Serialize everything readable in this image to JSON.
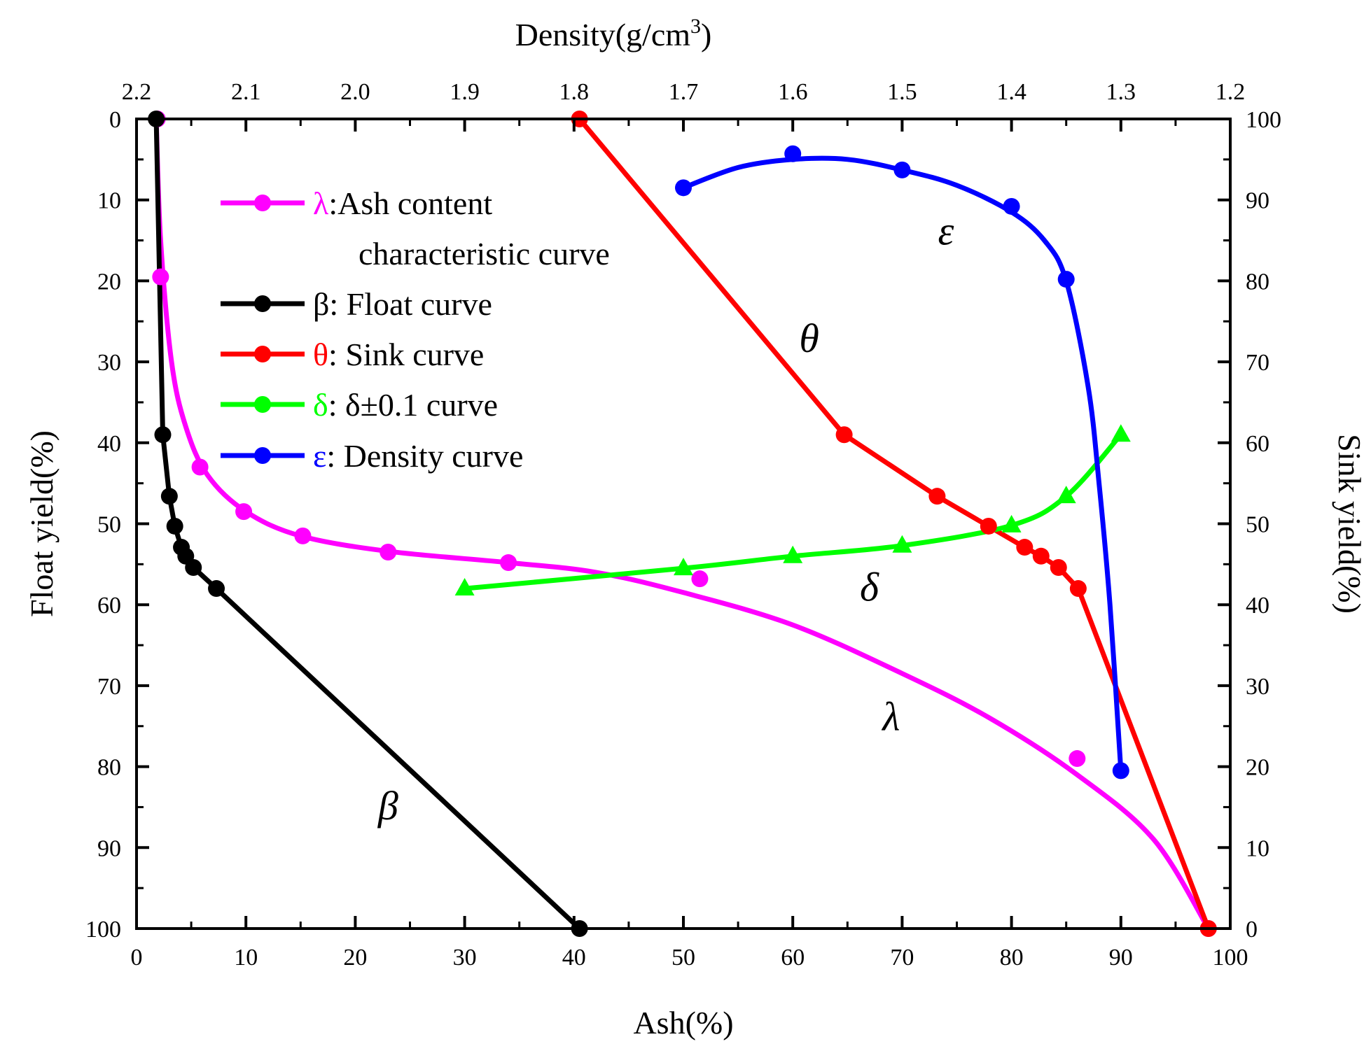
{
  "chart_data": {
    "type": "line",
    "bottom_axis": {
      "label": "Ash(%)",
      "range": [
        0,
        100
      ],
      "ticks": [
        "0",
        "10",
        "20",
        "30",
        "40",
        "50",
        "60",
        "70",
        "80",
        "90",
        "100"
      ]
    },
    "left_axis": {
      "label": "Float yield(%)",
      "range": [
        0,
        100
      ],
      "reversed": true,
      "ticks": [
        "0",
        "10",
        "20",
        "30",
        "40",
        "50",
        "60",
        "70",
        "80",
        "90",
        "100"
      ]
    },
    "right_axis": {
      "label": "Sink yield(%)",
      "range": [
        0,
        100
      ],
      "ticks": [
        "100",
        "90",
        "80",
        "70",
        "60",
        "50",
        "40",
        "30",
        "20",
        "10",
        "0"
      ]
    },
    "top_axis": {
      "label": "Density(g/cm",
      "label_sup": "3",
      "label_end": ")",
      "range": [
        2.2,
        1.2
      ],
      "ticks": [
        "2.2",
        "2.1",
        "2.0",
        "1.9",
        "1.8",
        "1.7",
        "1.6",
        "1.5",
        "1.4",
        "1.3",
        "1.2"
      ]
    },
    "series": [
      {
        "id": "lambda",
        "symbol": "λ",
        "legend_suffix": ":Ash content",
        "legend_line2": "characteristic curve",
        "color": "#ff00ff",
        "marker": "circle",
        "curve_label": "λ",
        "points": [
          [
            1.9,
            0
          ],
          [
            2.2,
            19.5
          ],
          [
            5.8,
            43
          ],
          [
            9.8,
            48.5
          ],
          [
            15.2,
            51.5
          ],
          [
            23,
            53.5
          ],
          [
            34,
            54.8
          ],
          [
            51.5,
            56.8
          ],
          [
            86,
            79
          ],
          [
            98,
            100
          ]
        ],
        "fit": [
          [
            1.8,
            0
          ],
          [
            2.2,
            15
          ],
          [
            3.2,
            30
          ],
          [
            4.5,
            38
          ],
          [
            6.5,
            44
          ],
          [
            10,
            48.5
          ],
          [
            15,
            51.5
          ],
          [
            23,
            53.4
          ],
          [
            34,
            54.8
          ],
          [
            42,
            56
          ],
          [
            50,
            58.5
          ],
          [
            60,
            62.5
          ],
          [
            70,
            68.5
          ],
          [
            78,
            74
          ],
          [
            86,
            81
          ],
          [
            93,
            89
          ],
          [
            98,
            100
          ]
        ]
      },
      {
        "id": "beta",
        "symbol": "β",
        "legend_suffix": ": Float curve",
        "color": "#000000",
        "marker": "circle",
        "curve_label": "β",
        "points": [
          [
            1.8,
            0
          ],
          [
            2.4,
            39
          ],
          [
            3,
            46.6
          ],
          [
            3.5,
            50.3
          ],
          [
            4.1,
            52.9
          ],
          [
            4.5,
            54
          ],
          [
            5.2,
            55.4
          ],
          [
            7.3,
            58
          ],
          [
            40.5,
            100
          ]
        ]
      },
      {
        "id": "theta",
        "symbol": "θ",
        "legend_suffix": ": Sink curve",
        "color": "#ff0000",
        "marker": "circle",
        "curve_label": "θ",
        "points": [
          [
            40.5,
            0
          ],
          [
            64.7,
            39
          ],
          [
            73.2,
            46.6
          ],
          [
            77.9,
            50.3
          ],
          [
            81.2,
            52.9
          ],
          [
            82.7,
            54
          ],
          [
            84.3,
            55.4
          ],
          [
            86.1,
            58
          ],
          [
            98,
            100
          ]
        ]
      },
      {
        "id": "delta",
        "symbol": "δ",
        "legend_suffix": ": δ±0.1 curve",
        "color": "#00ff00",
        "marker": "triangle",
        "curve_label": "δ",
        "points": [
          [
            30,
            58
          ],
          [
            50,
            55.5
          ],
          [
            60,
            54
          ],
          [
            70,
            52.7
          ],
          [
            80,
            50.2
          ],
          [
            85,
            46.6
          ],
          [
            90,
            39
          ]
        ]
      },
      {
        "id": "epsilon",
        "symbol": "ε",
        "legend_suffix": ": Density curve",
        "color": "#0000ff",
        "marker": "circle",
        "curve_label": "ε",
        "points": [
          [
            50,
            8.5
          ],
          [
            60,
            4.3
          ],
          [
            70,
            6.3
          ],
          [
            80,
            10.8
          ],
          [
            85,
            19.8
          ],
          [
            90,
            80.5
          ]
        ],
        "fit": [
          [
            50,
            8.5
          ],
          [
            55,
            6
          ],
          [
            60,
            5
          ],
          [
            65,
            5
          ],
          [
            70,
            6.3
          ],
          [
            75,
            8.2
          ],
          [
            80,
            11.5
          ],
          [
            83,
            15
          ],
          [
            85,
            20
          ],
          [
            87,
            33
          ],
          [
            88,
            45
          ],
          [
            89,
            60
          ],
          [
            90,
            80.5
          ]
        ]
      }
    ]
  }
}
